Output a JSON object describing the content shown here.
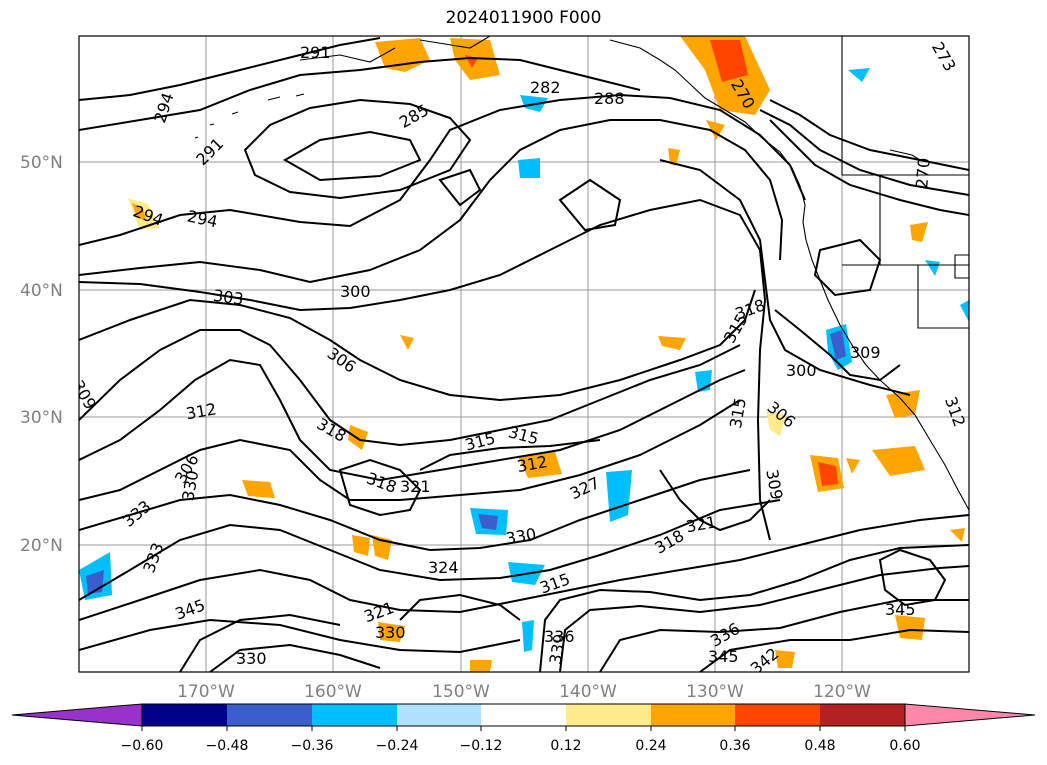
{
  "title": "2024011900 F000",
  "map": {
    "lat_labels": [
      "50°N",
      "40°N",
      "30°N",
      "20°N"
    ],
    "lon_labels": [
      "170°W",
      "160°W",
      "150°W",
      "140°W",
      "130°W",
      "120°W"
    ],
    "contour_labels": [
      "291",
      "294",
      "291",
      "282",
      "285",
      "288",
      "270",
      "273",
      "294",
      "294",
      "270",
      "303",
      "300",
      "318",
      "315",
      "309",
      "306",
      "309",
      "300",
      "312",
      "306",
      "312",
      "318",
      "315",
      "315",
      "315",
      "312",
      "306",
      "330",
      "318",
      "321",
      "327",
      "309",
      "333",
      "330",
      "333",
      "318",
      "321",
      "324",
      "315",
      "321",
      "345",
      "336",
      "339",
      "345",
      "342",
      "345",
      "330",
      "330",
      "336"
    ]
  },
  "colorbar": {
    "ticks": [
      "−0.60",
      "−0.48",
      "−0.36",
      "−0.24",
      "−0.12",
      "0.12",
      "0.24",
      "0.36",
      "0.48",
      "0.60"
    ],
    "colors": [
      "#9932cc",
      "#00008b",
      "#3a5fcd",
      "#00bfff",
      "#b0e2ff",
      "#ffffff",
      "#ffeb8c",
      "#ffa500",
      "#ff4500",
      "#b22222",
      "#ff88aa"
    ]
  }
}
